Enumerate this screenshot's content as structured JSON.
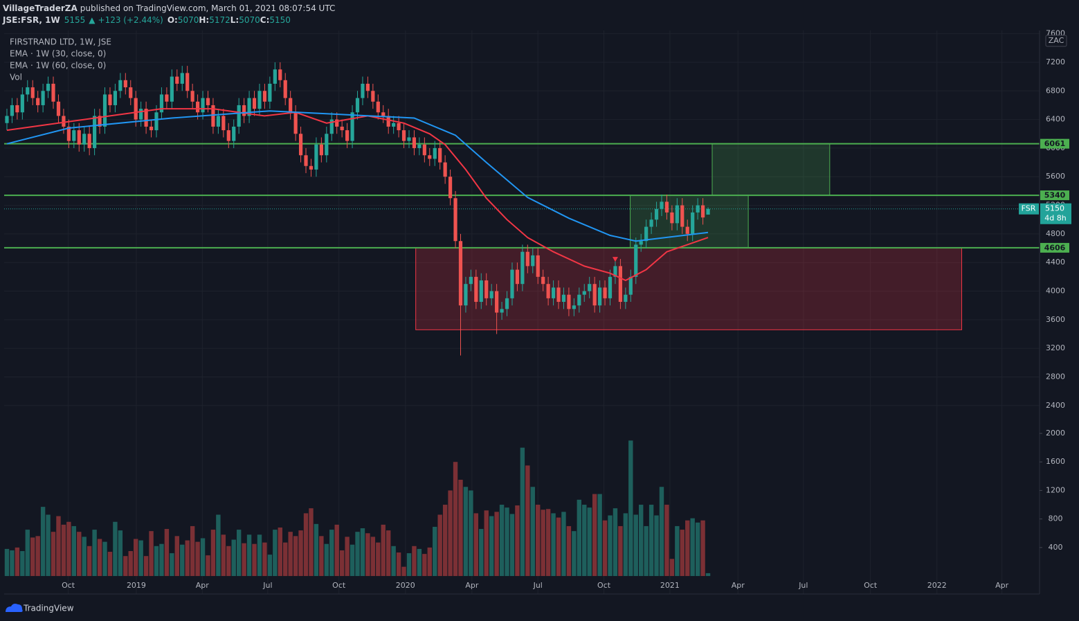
{
  "header": {
    "publisher": "VillageTraderZA",
    "published": "published on TradingView.com, March 01, 2021 08:07:54 UTC",
    "symbol": "JSE:FSR, 1W",
    "price": 5155,
    "arrow": "▲",
    "change": "+123 (+2.44%)",
    "ohlc": [
      {
        "label": "O:",
        "value": 5070
      },
      {
        "label": "H:",
        "value": 5172
      },
      {
        "label": "L:",
        "value": 5070
      },
      {
        "label": "C:",
        "value": 5150
      }
    ]
  },
  "footer": {
    "brand": "TradingView"
  },
  "chart_data": {
    "type": "candlestick",
    "title": "FIRSTRAND LTD, 1W, JSE",
    "currency": "ZAC",
    "volume_name": "Vol",
    "up_color": "#26a69a",
    "down_color": "#ef5350",
    "volume_up_color": "#1e5f5c",
    "volume_down_color": "#7b3035",
    "open": [
      6350,
      6450,
      6600,
      6500,
      6750,
      6850,
      6700,
      6600,
      6800,
      6900,
      6650,
      6450,
      6300,
      6100,
      6250,
      6050,
      6200,
      6000,
      6450,
      6300,
      6750,
      6600,
      6800,
      6950,
      6850,
      6700,
      6400,
      6550,
      6300,
      6250,
      6500,
      6750,
      6650,
      7000,
      6900,
      7050,
      6800,
      6650,
      6500,
      6700,
      6600,
      6300,
      6450,
      6250,
      6100,
      6300,
      6600,
      6450,
      6700,
      6550,
      6800,
      6650,
      6900,
      7100,
      6950,
      6700,
      6500,
      6200,
      5900,
      5750,
      5700,
      6050,
      5900,
      6200,
      6400,
      6300,
      6250,
      6100,
      6500,
      6700,
      6900,
      6800,
      6650,
      6500,
      6450,
      6300,
      6350,
      6250,
      6100,
      6150,
      6000,
      6050,
      5900,
      5850,
      6000,
      5800,
      5600,
      5300,
      4700,
      3800,
      4100,
      4200,
      3850,
      4150,
      3900,
      4000,
      3700,
      3750,
      3900,
      4300,
      4100,
      4550,
      4350,
      4500,
      4200,
      4100,
      3900,
      4050,
      3850,
      3950,
      3750,
      3800,
      3950,
      4000,
      4100,
      3800,
      4050,
      3900,
      4200,
      4350,
      3850,
      3950,
      4200,
      4650,
      4700,
      4900,
      5000,
      5150,
      5250,
      5100,
      4950,
      5200,
      4900,
      4800,
      5100,
      5200,
      5070
    ],
    "high": [
      6550,
      6700,
      6700,
      6850,
      6950,
      6950,
      6800,
      6900,
      7000,
      7000,
      6750,
      6550,
      6400,
      6350,
      6350,
      6300,
      6300,
      6550,
      6550,
      6850,
      6850,
      6900,
      7050,
      7050,
      6950,
      6800,
      6650,
      6650,
      6400,
      6600,
      6850,
      6850,
      7100,
      7100,
      7150,
      7150,
      6900,
      6750,
      6800,
      6800,
      6700,
      6550,
      6550,
      6350,
      6400,
      6700,
      6700,
      6800,
      6800,
      6900,
      6900,
      7000,
      7200,
      7200,
      7050,
      6800,
      6600,
      6300,
      6000,
      5850,
      6150,
      6150,
      6300,
      6500,
      6500,
      6400,
      6350,
      6600,
      6800,
      7000,
      7000,
      6900,
      6750,
      6600,
      6550,
      6450,
      6450,
      6350,
      6250,
      6250,
      6150,
      6150,
      6000,
      6100,
      6100,
      5900,
      5700,
      5400,
      4800,
      4200,
      4300,
      4300,
      4250,
      4250,
      4100,
      4100,
      3850,
      4000,
      4400,
      4400,
      4650,
      4650,
      4600,
      4600,
      4300,
      4200,
      4150,
      4150,
      4050,
      4050,
      3900,
      4050,
      4100,
      4200,
      4200,
      4150,
      4150,
      4300,
      4450,
      4450,
      4050,
      4300,
      4750,
      4800,
      5000,
      5100,
      5250,
      5350,
      5350,
      5200,
      5300,
      5300,
      5000,
      5200,
      5300,
      5300,
      5172
    ],
    "low": [
      6250,
      6350,
      6400,
      6400,
      6650,
      6600,
      6500,
      6500,
      6700,
      6550,
      6350,
      6200,
      6000,
      6000,
      5950,
      5950,
      5900,
      5900,
      6200,
      6200,
      6500,
      6500,
      6700,
      6750,
      6600,
      6300,
      6300,
      6200,
      6150,
      6150,
      6400,
      6550,
      6550,
      6800,
      6800,
      6700,
      6550,
      6400,
      6400,
      6500,
      6200,
      6200,
      6150,
      6000,
      6000,
      6200,
      6350,
      6350,
      6450,
      6450,
      6550,
      6550,
      6800,
      6850,
      6600,
      6400,
      6100,
      5800,
      5650,
      5600,
      5600,
      5800,
      5800,
      6100,
      6200,
      6150,
      6000,
      6000,
      6400,
      6600,
      6700,
      6550,
      6400,
      6350,
      6200,
      6200,
      6150,
      6000,
      6000,
      5900,
      5900,
      5800,
      5750,
      5750,
      5700,
      5500,
      5200,
      4600,
      3100,
      3700,
      4000,
      3750,
      3750,
      3800,
      3800,
      3400,
      3600,
      3650,
      3800,
      4000,
      4000,
      4250,
      4250,
      4100,
      4000,
      3800,
      3800,
      3750,
      3750,
      3650,
      3650,
      3700,
      3850,
      3900,
      3700,
      3700,
      3800,
      3800,
      4100,
      3750,
      3750,
      3850,
      4100,
      4550,
      4600,
      4800,
      4900,
      5050,
      5000,
      4850,
      4850,
      4800,
      4700,
      4700,
      5000,
      4930,
      5070
    ],
    "close": [
      6450,
      6600,
      6500,
      6750,
      6850,
      6700,
      6600,
      6800,
      6900,
      6650,
      6450,
      6300,
      6100,
      6250,
      6050,
      6200,
      6000,
      6450,
      6300,
      6750,
      6600,
      6800,
      6950,
      6850,
      6700,
      6400,
      6550,
      6300,
      6250,
      6500,
      6750,
      6650,
      7000,
      6900,
      7050,
      6800,
      6650,
      6500,
      6700,
      6600,
      6300,
      6450,
      6250,
      6100,
      6300,
      6600,
      6450,
      6700,
      6550,
      6800,
      6650,
      6900,
      7100,
      6950,
      6700,
      6500,
      6200,
      5900,
      5750,
      5700,
      6050,
      5900,
      6200,
      6400,
      6300,
      6250,
      6100,
      6500,
      6700,
      6900,
      6800,
      6650,
      6500,
      6450,
      6300,
      6350,
      6250,
      6100,
      6150,
      6000,
      6050,
      5900,
      5850,
      6000,
      5800,
      5600,
      5300,
      4700,
      3800,
      4100,
      4200,
      3850,
      4150,
      3900,
      4000,
      3700,
      3750,
      3900,
      4300,
      4100,
      4550,
      4350,
      4500,
      4200,
      4100,
      3900,
      4050,
      3850,
      3950,
      3750,
      3800,
      3950,
      4000,
      4100,
      3800,
      4050,
      3900,
      4200,
      4350,
      3850,
      3950,
      4200,
      4650,
      4700,
      4900,
      5000,
      5150,
      5250,
      5100,
      4950,
      5200,
      4900,
      4800,
      5100,
      5200,
      5030,
      5150
    ],
    "volume": [
      380,
      360,
      400,
      350,
      650,
      540,
      560,
      970,
      860,
      620,
      840,
      720,
      760,
      700,
      620,
      550,
      420,
      650,
      520,
      480,
      340,
      760,
      640,
      280,
      350,
      520,
      500,
      280,
      630,
      420,
      450,
      660,
      320,
      560,
      440,
      500,
      700,
      480,
      530,
      290,
      650,
      860,
      580,
      420,
      510,
      650,
      460,
      580,
      450,
      580,
      470,
      300,
      650,
      680,
      470,
      620,
      560,
      640,
      880,
      950,
      730,
      560,
      450,
      650,
      720,
      360,
      550,
      440,
      620,
      670,
      600,
      550,
      470,
      720,
      640,
      420,
      330,
      130,
      320,
      420,
      380,
      310,
      400,
      690,
      860,
      1000,
      1200,
      1600,
      1350,
      1250,
      1200,
      880,
      660,
      920,
      840,
      900,
      1000,
      960,
      870,
      990,
      1800,
      1550,
      1250,
      1000,
      930,
      940,
      880,
      820,
      900,
      700,
      630,
      1070,
      1000,
      960,
      1150,
      1150,
      780,
      850,
      950,
      700,
      880,
      1900,
      860,
      1000,
      700,
      1000,
      850,
      1250,
      1000,
      240,
      700,
      650,
      780,
      810,
      750,
      780,
      40
    ],
    "series": [
      {
        "name": "EMA · 1W (30, close, 0)",
        "color": "#f23645",
        "x": [
          0,
          10,
          20,
          30,
          40,
          50,
          56,
          62,
          70,
          77,
          82,
          85,
          89,
          93,
          97,
          101,
          106,
          112,
          117,
          120,
          124,
          128,
          132,
          136
        ],
        "values": [
          6250,
          6350,
          6450,
          6550,
          6550,
          6450,
          6500,
          6350,
          6450,
          6350,
          6200,
          6050,
          5700,
          5300,
          5000,
          4750,
          4550,
          4350,
          4250,
          4150,
          4300,
          4550,
          4650,
          4750
        ]
      },
      {
        "name": "EMA · 1W (60, close, 0)",
        "color": "#2196f3",
        "x": [
          0,
          12,
          32,
          51,
          65,
          79,
          87,
          93,
          101,
          109,
          117,
          122,
          129,
          136
        ],
        "values": [
          6060,
          6280,
          6420,
          6520,
          6470,
          6420,
          6180,
          5800,
          5310,
          5020,
          4780,
          4700,
          4760,
          4820
        ]
      }
    ],
    "levels": [
      6061,
      5340,
      4606
    ],
    "level_color": "#4caf50",
    "zones": [
      {
        "x": [
          120.9,
          143.8
        ],
        "y": [
          4606,
          5340
        ],
        "color": "#4caf50"
      },
      {
        "x": [
          136.8,
          159.6
        ],
        "y": [
          5340,
          6061
        ],
        "color": "#4caf50"
      },
      {
        "x": [
          79.3,
          185.2
        ],
        "y": [
          3460,
          4606
        ],
        "color": "#f23645"
      }
    ],
    "marker": {
      "x": 118,
      "y": 4440,
      "color": "#f23645"
    },
    "last": {
      "symbol": "FSR",
      "value": 5150,
      "countdown": "4d 8h",
      "color": "#22a39a"
    },
    "xlim": [
      -1.34,
      200.3
    ],
    "xticks": [
      {
        "value": 11.9,
        "label": "Oct"
      },
      {
        "value": 25.1,
        "label": "2019"
      },
      {
        "value": 37.9,
        "label": "Apr"
      },
      {
        "value": 50.6,
        "label": "Jul"
      },
      {
        "value": 64.4,
        "label": "Oct"
      },
      {
        "value": 77.3,
        "label": "2020"
      },
      {
        "value": 90.2,
        "label": "Apr"
      },
      {
        "value": 103,
        "label": "Jul"
      },
      {
        "value": 115.8,
        "label": "Oct"
      },
      {
        "value": 128.6,
        "label": "2021"
      },
      {
        "value": 141.8,
        "label": "Apr"
      },
      {
        "value": 154.5,
        "label": "Jul"
      },
      {
        "value": 167.5,
        "label": "Oct"
      },
      {
        "value": 180.4,
        "label": "2022"
      },
      {
        "value": 193,
        "label": "Apr"
      }
    ],
    "ylim": [
      -235,
      7645
    ],
    "yticks": [
      7600,
      7200,
      6800,
      6400,
      6000,
      5600,
      5200,
      4800,
      4400,
      4000,
      3600,
      3200,
      2800,
      2400
    ],
    "y2lim": [
      -252,
      7650
    ],
    "y2ticks": [
      2000,
      1600,
      1200,
      800,
      400
    ],
    "grid": true
  }
}
